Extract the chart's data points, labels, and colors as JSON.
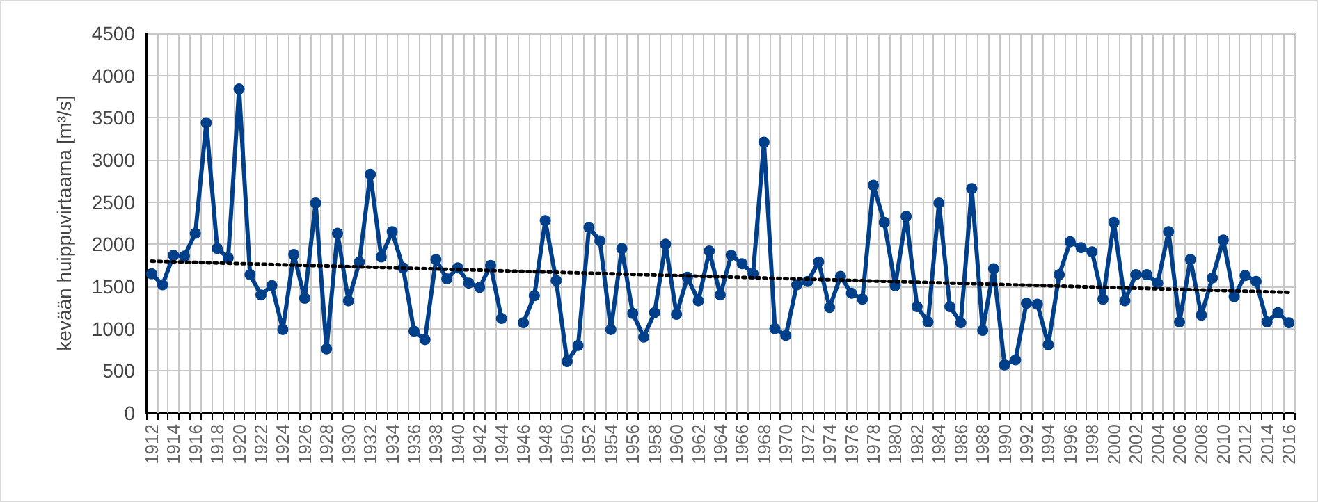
{
  "chart_data": {
    "type": "line",
    "ylabel": "kevään huippuvirtaama [m³/s]",
    "categories": [
      "1912",
      null,
      "1914",
      null,
      "1916",
      null,
      "1918",
      null,
      "1920",
      null,
      "1922",
      null,
      "1924",
      null,
      "1926",
      null,
      "1928",
      null,
      "1930",
      null,
      "1932",
      null,
      "1934",
      null,
      "1936",
      null,
      "1938",
      null,
      "1940",
      null,
      "1942",
      null,
      "1944",
      null,
      "1946",
      null,
      "1948",
      null,
      "1950",
      null,
      "1952",
      null,
      "1954",
      null,
      "1956",
      null,
      "1958",
      null,
      "1960",
      null,
      "1962",
      null,
      "1964",
      null,
      "1966",
      null,
      "1968",
      null,
      "1970",
      null,
      "1972",
      null,
      "1974",
      null,
      "1976",
      null,
      "1978",
      null,
      "1980",
      null,
      "1982",
      null,
      "1984",
      null,
      "1986",
      null,
      "1988",
      null,
      "1990",
      null,
      "1992",
      null,
      "1994",
      null,
      "1996",
      null,
      "1998",
      null,
      "2000",
      null,
      "2002",
      null,
      "2004",
      null,
      "2006",
      null,
      "2008",
      null,
      "2010",
      null,
      "2012",
      null,
      "2014",
      null,
      "2016"
    ],
    "series": [
      {
        "color": "#003f8a",
        "marker": "circle",
        "line_style": "solid",
        "values": [
          1650,
          1520,
          1870,
          1860,
          2130,
          3440,
          1950,
          1840,
          3840,
          1640,
          1400,
          1510,
          990,
          1880,
          1360,
          2490,
          760,
          2130,
          1330,
          1790,
          2830,
          1850,
          2150,
          1720,
          970,
          870,
          1820,
          1590,
          1720,
          1540,
          1490,
          1750,
          1120,
          null,
          1070,
          1390,
          2280,
          1570,
          610,
          800,
          2200,
          2040,
          990,
          1950,
          1180,
          900,
          1190,
          2000,
          1170,
          1610,
          1330,
          1920,
          1400,
          1870,
          1770,
          1650,
          3210,
          1000,
          920,
          1520,
          1560,
          1790,
          1250,
          1620,
          1420,
          1350,
          2700,
          2260,
          1510,
          2330,
          1260,
          1080,
          2490,
          1260,
          1070,
          2660,
          980,
          1710,
          570,
          630,
          1300,
          1290,
          810,
          1640,
          2030,
          1960,
          1910,
          1350,
          2260,
          1330,
          1640,
          1640,
          1540,
          2150,
          1080,
          1820,
          1160,
          1600,
          2050,
          1380,
          1630,
          1560,
          1080,
          1190,
          1070
        ]
      },
      {
        "color": "#000000",
        "marker": "none",
        "line_style": "dotted",
        "values": [
          1800,
          null,
          null,
          null,
          null,
          null,
          null,
          null,
          null,
          null,
          null,
          null,
          null,
          null,
          null,
          null,
          null,
          null,
          null,
          null,
          null,
          null,
          null,
          null,
          null,
          null,
          null,
          null,
          null,
          null,
          null,
          null,
          null,
          null,
          null,
          null,
          null,
          null,
          null,
          null,
          null,
          null,
          null,
          null,
          null,
          null,
          null,
          null,
          null,
          null,
          null,
          null,
          null,
          null,
          null,
          null,
          null,
          null,
          null,
          null,
          null,
          null,
          null,
          null,
          null,
          null,
          null,
          null,
          null,
          null,
          null,
          null,
          null,
          null,
          null,
          null,
          null,
          null,
          null,
          null,
          null,
          null,
          null,
          null,
          null,
          null,
          null,
          null,
          null,
          null,
          null,
          null,
          null,
          null,
          null,
          null,
          null,
          null,
          null,
          null,
          null,
          null,
          null,
          null,
          1430
        ]
      }
    ],
    "ylim": [
      0,
      4500
    ],
    "yticks": [
      0,
      500,
      1000,
      1500,
      2000,
      2500,
      3000,
      3500,
      4000,
      4500
    ],
    "grid": true
  }
}
